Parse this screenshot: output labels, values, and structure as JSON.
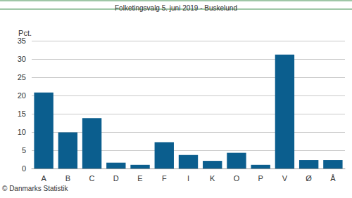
{
  "chart_data": {
    "type": "bar",
    "title": "Folketingsvalg 5. juni 2019 - Buskelund",
    "y_label": "Pct.",
    "annotation": "© Danmarks Statistik",
    "categories": [
      "A",
      "B",
      "C",
      "D",
      "E",
      "F",
      "I",
      "K",
      "O",
      "P",
      "V",
      "Ø",
      "Å"
    ],
    "values": [
      20.8,
      9.9,
      13.8,
      1.6,
      1.0,
      7.2,
      3.7,
      2.1,
      4.3,
      1.0,
      31.2,
      2.3,
      2.3
    ],
    "color": "#0b5e8e",
    "ylim": [
      0,
      35
    ],
    "yticks": [
      0,
      5,
      10,
      15,
      20,
      25,
      30,
      35
    ],
    "grid": true
  }
}
